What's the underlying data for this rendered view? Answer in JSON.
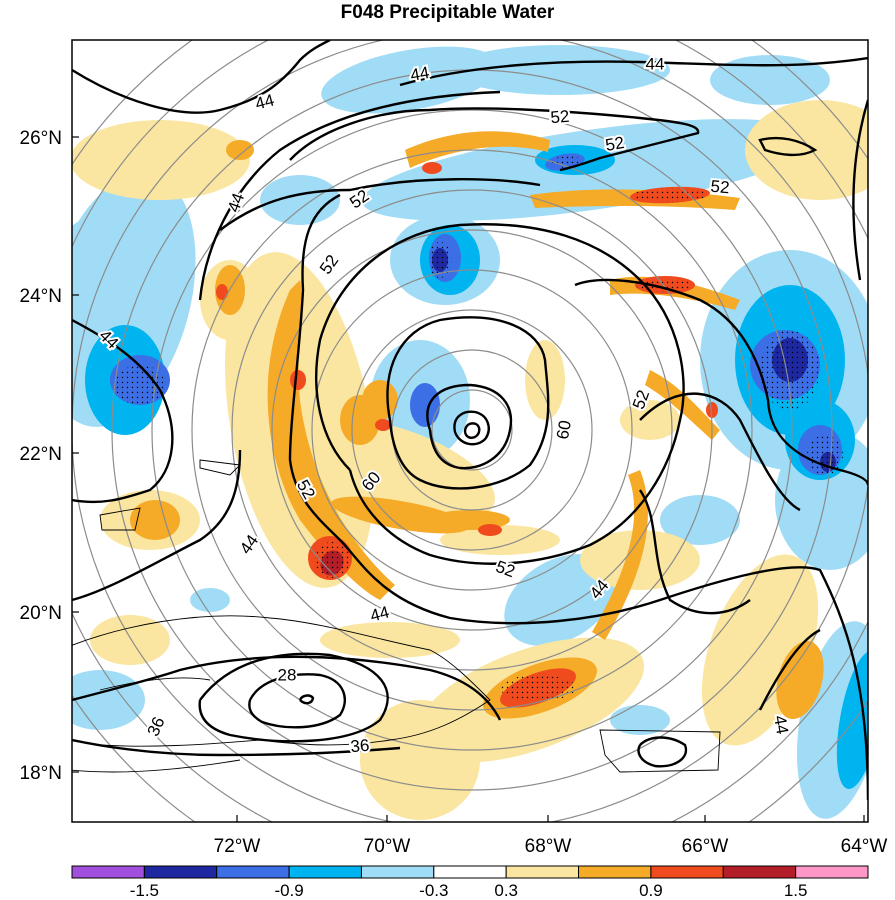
{
  "chart_data": {
    "type": "heatmap",
    "title": "F048 Precipitable Water",
    "x_ticks": [
      "72°W",
      "70°W",
      "68°W",
      "66°W",
      "64°W"
    ],
    "y_ticks": [
      "26°N",
      "24°N",
      "22°N",
      "20°N",
      "18°N"
    ],
    "colorbar": {
      "levels": [
        -1.8,
        -1.5,
        -1.2,
        -0.9,
        -0.6,
        -0.3,
        0.3,
        0.6,
        0.9,
        1.2,
        1.5,
        1.8
      ],
      "tick_labels": [
        "-1.5",
        "-0.9",
        "-0.3",
        "0.3",
        "0.9",
        "1.5"
      ],
      "colors": [
        "#a050dc",
        "#1e28a0",
        "#3c6ee6",
        "#00b4f0",
        "#a0dcf5",
        "#ffffff",
        "#fae6a0",
        "#f5aa28",
        "#f04b1e",
        "#b41e28",
        "#ff96c8"
      ]
    },
    "contour_labels": [
      {
        "value": "44"
      },
      {
        "value": "44"
      },
      {
        "value": "44"
      },
      {
        "value": "44"
      },
      {
        "value": "44"
      },
      {
        "value": "44"
      },
      {
        "value": "44"
      },
      {
        "value": "44"
      },
      {
        "value": "52"
      },
      {
        "value": "52"
      },
      {
        "value": "52"
      },
      {
        "value": "52"
      },
      {
        "value": "52"
      },
      {
        "value": "52"
      },
      {
        "value": "52"
      },
      {
        "value": "52"
      },
      {
        "value": "60"
      },
      {
        "value": "60"
      },
      {
        "value": "28"
      },
      {
        "value": "36"
      },
      {
        "value": "36"
      },
      {
        "value": "44"
      }
    ],
    "grid": true
  }
}
